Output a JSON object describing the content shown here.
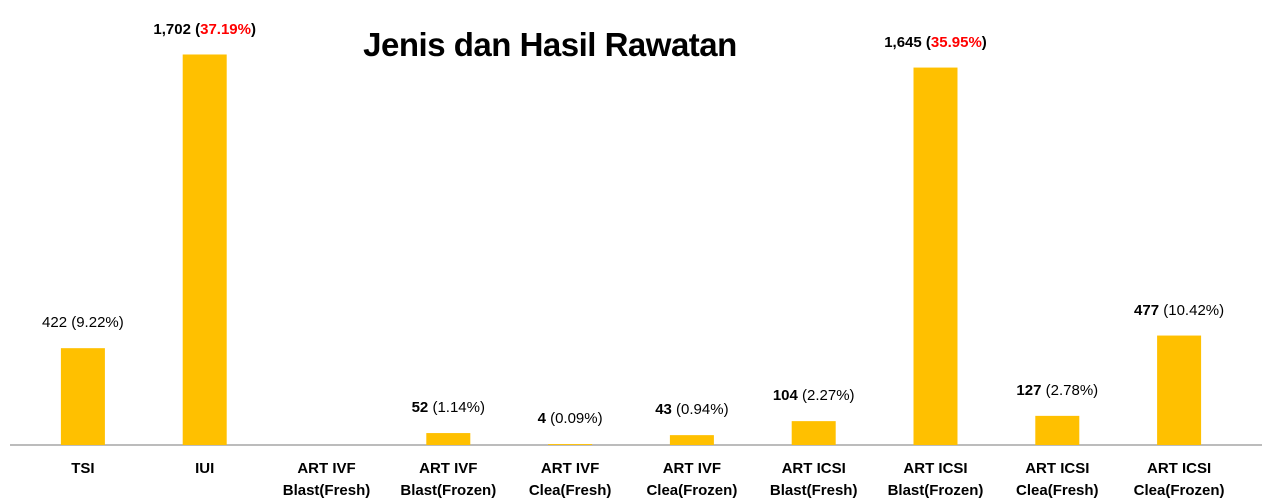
{
  "chart_data": {
    "type": "bar",
    "title": "Jenis dan Hasil Rawatan",
    "categories": [
      "TSI",
      "IUI",
      "ART IVF Blast(Fresh)",
      "ART IVF Blast(Frozen)",
      "ART IVF Clea(Fresh)",
      "ART IVF Clea(Frozen)",
      "ART ICSI Blast(Fresh)",
      "ART ICSI Blast(Frozen)",
      "ART ICSI Clea(Fresh)",
      "ART ICSI Clea(Frozen)"
    ],
    "values": [
      422,
      1702,
      null,
      52,
      4,
      43,
      104,
      1645,
      127,
      477
    ],
    "value_labels": [
      "422",
      "1,702",
      null,
      "52",
      "4",
      "43",
      "104",
      "1,645",
      "127",
      "477"
    ],
    "value_bold": [
      false,
      true,
      false,
      true,
      true,
      true,
      true,
      true,
      true,
      true
    ],
    "shares": [
      9.22,
      37.19,
      null,
      1.14,
      0.09,
      0.94,
      2.27,
      35.95,
      2.78,
      10.42
    ],
    "share_labels": [
      "(9.22%)",
      "(37.19%)",
      null,
      "(1.14%)",
      "(0.09%)",
      "(0.94%)",
      "(2.27%)",
      "(35.95%)",
      "(2.78%)",
      "(10.42%)"
    ],
    "highlighted": [
      false,
      true,
      false,
      false,
      false,
      false,
      false,
      true,
      false,
      false
    ],
    "color": "#ffc000",
    "highlight_color": "#ff0000",
    "ylim": [
      0,
      1800
    ]
  }
}
